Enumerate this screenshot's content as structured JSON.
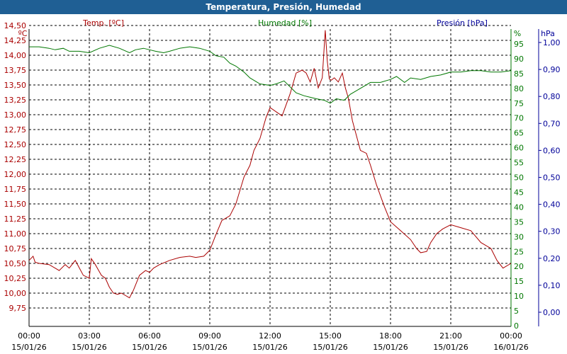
{
  "window": {
    "title": "Temperatura, Presión, Humedad"
  },
  "chart_data": {
    "type": "line",
    "title": "Temperatura, Presión, Humedad",
    "colors": {
      "temperature": "#aa0000",
      "humidity": "#007700",
      "pressure": "#000099",
      "title_bar": "#1f5f94"
    },
    "grid": true,
    "axes": {
      "temperature": {
        "label": "Temp. [ºC]",
        "unit": "ºC",
        "ylim": [
          9.75,
          14.5
        ],
        "ticks": [
          "9,75",
          "10,00",
          "10,25",
          "10,50",
          "10,75",
          "11,00",
          "11,25",
          "11,50",
          "11,75",
          "12,00",
          "12,25",
          "12,50",
          "12,75",
          "13,00",
          "13,25",
          "13,50",
          "13,75",
          "14,00",
          "14,25",
          "14,50"
        ]
      },
      "humidity": {
        "label": "Humedad [%]",
        "unit": "%",
        "ylim": [
          0,
          100
        ],
        "ticks": [
          "0",
          "5",
          "10",
          "15",
          "20",
          "25",
          "30",
          "35",
          "40",
          "45",
          "50",
          "55",
          "60",
          "65",
          "70",
          "75",
          "80",
          "85",
          "90",
          "95"
        ]
      },
      "pressure": {
        "label": "Presión [hPa]",
        "unit": "hPa",
        "ylim": [
          -0.05,
          1.0
        ],
        "ticks": [
          "0,00",
          "0,10",
          "0,20",
          "0,30",
          "0,40",
          "0,50",
          "0,60",
          "0,70",
          "0,80",
          "0,90",
          "1,00"
        ]
      }
    },
    "x_ticks": [
      {
        "hour": 0,
        "time": "00:00",
        "date": "15/01/26"
      },
      {
        "hour": 3,
        "time": "03:00",
        "date": "15/01/26"
      },
      {
        "hour": 6,
        "time": "06:00",
        "date": "15/01/26"
      },
      {
        "hour": 9,
        "time": "09:00",
        "date": "15/01/26"
      },
      {
        "hour": 12,
        "time": "12:00",
        "date": "15/01/26"
      },
      {
        "hour": 15,
        "time": "15:00",
        "date": "15/01/26"
      },
      {
        "hour": 18,
        "time": "18:00",
        "date": "15/01/26"
      },
      {
        "hour": 21,
        "time": "21:00",
        "date": "15/01/26"
      },
      {
        "hour": 24,
        "time": "00:00",
        "date": "16/01/26"
      }
    ],
    "series": [
      {
        "name": "Temp. [ºC]",
        "axis": "temperature",
        "x": [
          0,
          0.2,
          0.3,
          0.5,
          1,
          1.5,
          1.8,
          2,
          2.3,
          2.7,
          3,
          3.1,
          3.3,
          3.6,
          3.8,
          4,
          4.2,
          4.4,
          4.6,
          5,
          5.2,
          5.5,
          5.8,
          6,
          6.2,
          6.5,
          7,
          7.5,
          8,
          8.3,
          8.7,
          9,
          9.3,
          9.6,
          10,
          10.3,
          10.7,
          11,
          11.2,
          11.5,
          11.8,
          12,
          12.3,
          12.6,
          13,
          13.3,
          13.6,
          13.8,
          14,
          14.2,
          14.4,
          14.6,
          14.75,
          14.85,
          14.95,
          15.05,
          15.2,
          15.4,
          15.6,
          15.75,
          15.9,
          16.1,
          16.5,
          16.8,
          17,
          17.3,
          17.7,
          18,
          18.5,
          19,
          19.3,
          19.5,
          19.8,
          20,
          20.3,
          20.6,
          21,
          21.5,
          22,
          22.5,
          23,
          23.3,
          23.6,
          24
        ],
        "values": [
          10.55,
          10.62,
          10.52,
          10.5,
          10.48,
          10.38,
          10.48,
          10.42,
          10.55,
          10.3,
          10.25,
          10.58,
          10.48,
          10.3,
          10.25,
          10.1,
          10.0,
          9.98,
          10.0,
          9.92,
          10.05,
          10.3,
          10.38,
          10.35,
          10.42,
          10.48,
          10.55,
          10.6,
          10.62,
          10.6,
          10.62,
          10.72,
          10.98,
          11.22,
          11.3,
          11.5,
          11.95,
          12.15,
          12.4,
          12.6,
          12.95,
          13.12,
          13.05,
          12.98,
          13.35,
          13.7,
          13.75,
          13.7,
          13.55,
          13.78,
          13.45,
          13.62,
          14.42,
          13.9,
          13.6,
          13.58,
          13.62,
          13.55,
          13.7,
          13.45,
          13.28,
          12.9,
          12.4,
          12.35,
          12.15,
          11.82,
          11.45,
          11.2,
          11.05,
          10.9,
          10.75,
          10.68,
          10.7,
          10.85,
          11.0,
          11.08,
          11.15,
          11.1,
          11.05,
          10.85,
          10.75,
          10.55,
          10.42,
          10.5
        ]
      },
      {
        "name": "Humedad [%]",
        "axis": "humidity",
        "x": [
          0,
          0.5,
          1,
          1.3,
          1.7,
          2,
          2.5,
          3,
          3.5,
          4,
          4.5,
          5,
          5.3,
          5.7,
          6,
          6.3,
          6.7,
          7,
          7.5,
          8,
          8.5,
          9,
          9.3,
          9.7,
          10,
          10.3,
          10.7,
          11,
          11.5,
          12,
          12.3,
          12.7,
          13,
          13.3,
          13.7,
          14,
          14.3,
          14.7,
          15,
          15.3,
          15.7,
          16,
          16.5,
          17,
          17.5,
          18,
          18.3,
          18.7,
          19,
          19.5,
          20,
          20.5,
          21,
          21.5,
          22,
          22.5,
          23,
          23.5,
          24
        ],
        "values": [
          94,
          94,
          93.5,
          93,
          93.5,
          92.5,
          92.5,
          92,
          93.5,
          94.5,
          93.5,
          92,
          93,
          93.5,
          93,
          92.5,
          92,
          92.5,
          93.5,
          94,
          93.5,
          92.5,
          91,
          90.5,
          88.5,
          87.5,
          85.5,
          83.5,
          81.5,
          81,
          81.5,
          82.5,
          80.5,
          78.5,
          77.5,
          77,
          76.5,
          76,
          75,
          76.5,
          76,
          78,
          80,
          82,
          82,
          83,
          84,
          82,
          83.5,
          83,
          84,
          84.5,
          85.5,
          85.5,
          86,
          86,
          85.5,
          85.5,
          86
        ]
      }
    ]
  }
}
